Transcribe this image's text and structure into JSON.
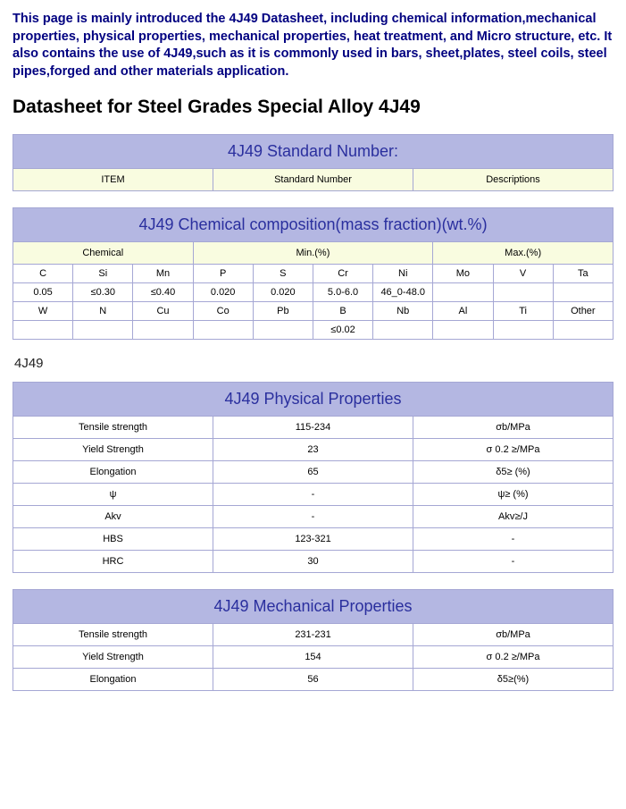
{
  "intro_text": "This page is mainly introduced the 4J49 Datasheet, including chemical information,mechanical properties, physical properties, mechanical properties, heat treatment, and Micro structure, etc. It also contains the use of 4J49,such as it is commonly used in bars, sheet,plates, steel coils, steel pipes,forged and other materials application.",
  "main_heading": "Datasheet for Steel Grades Special Alloy 4J49",
  "colors": {
    "intro_text": "#000080",
    "header_bg": "#b4b7e2",
    "header_text": "#2a2f9e",
    "subhead_bg": "#f9fce0",
    "border": "#a5a7d4",
    "body_bg": "#ffffff"
  },
  "standard_number": {
    "title": "4J49 Standard Number:",
    "columns": [
      "ITEM",
      "Standard Number",
      "Descriptions"
    ]
  },
  "chemical": {
    "title": "4J49 Chemical composition(mass fraction)(wt.%)",
    "group_headers": [
      "Chemical",
      "Min.(%)",
      "Max.(%)"
    ],
    "row1_labels": [
      "C",
      "Si",
      "Mn",
      "P",
      "S",
      "Cr",
      "Ni",
      "Mo",
      "V",
      "Ta"
    ],
    "row1_values": [
      "0.05",
      "≤0.30",
      "≤0.40",
      "0.020",
      "0.020",
      "5.0-6.0",
      "46_0-48.0",
      "",
      "",
      ""
    ],
    "row2_labels": [
      "W",
      "N",
      "Cu",
      "Co",
      "Pb",
      "B",
      "Nb",
      "Al",
      "Ti",
      "Other"
    ],
    "row2_values": [
      "",
      "",
      "",
      "",
      "",
      "≤0.02",
      "",
      "",
      "",
      ""
    ]
  },
  "section_label": "4J49",
  "physical": {
    "title": "4J49 Physical Properties",
    "rows": [
      {
        "name": "Tensile strength",
        "value": "115-234",
        "unit": "σb/MPa"
      },
      {
        "name": "Yield Strength",
        "value": "23",
        "unit": "σ 0.2 ≥/MPa"
      },
      {
        "name": "Elongation",
        "value": "65",
        "unit": "δ5≥ (%)"
      },
      {
        "name": "ψ",
        "value": "-",
        "unit": "ψ≥ (%)"
      },
      {
        "name": "Akv",
        "value": "-",
        "unit": "Akv≥/J"
      },
      {
        "name": "HBS",
        "value": "123-321",
        "unit": "-"
      },
      {
        "name": "HRC",
        "value": "30",
        "unit": "-"
      }
    ]
  },
  "mechanical": {
    "title": "4J49 Mechanical Properties",
    "rows": [
      {
        "name": "Tensile strength",
        "value": "231-231",
        "unit": "σb/MPa"
      },
      {
        "name": "Yield Strength",
        "value": "154",
        "unit": "σ 0.2 ≥/MPa"
      },
      {
        "name": "Elongation",
        "value": "56",
        "unit": "δ5≥(%)"
      }
    ]
  }
}
